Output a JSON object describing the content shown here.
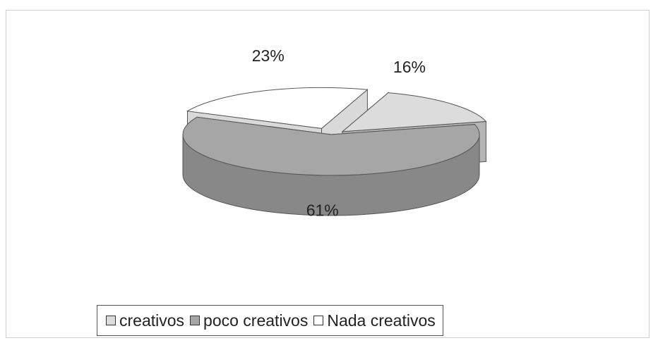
{
  "chart_data": {
    "type": "pie",
    "style": "3d-exploded",
    "categories": [
      "creativos",
      "poco creativos",
      "Nada creativos"
    ],
    "values": [
      16,
      61,
      23
    ],
    "unit": "%",
    "data_labels": [
      "16%",
      "61%",
      "23%"
    ],
    "colors": [
      "#dcdcdc",
      "#a6a6a6",
      "#ffffff"
    ],
    "edge_colors": [
      "#b4b4b4",
      "#888888",
      "#d9d9d9"
    ],
    "legend_position": "bottom",
    "title": ""
  }
}
